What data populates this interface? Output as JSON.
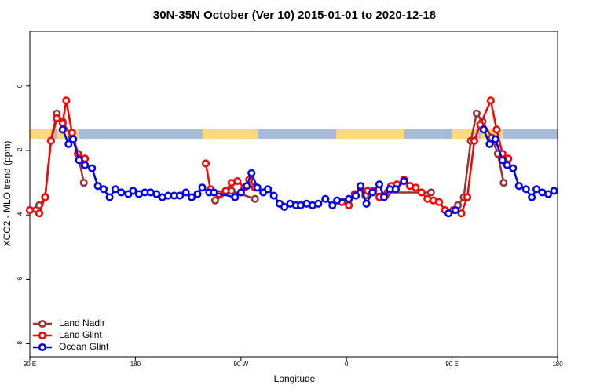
{
  "chart_data": {
    "type": "line",
    "title": "30N-35N October (Ver 10)   2015-01-01 to 2020-12-18",
    "x_label": "Longitude",
    "y_label": "XCO2 - MLO trend (ppm)",
    "xlim": [
      90,
      540
    ],
    "ylim": [
      -8.4,
      1.7
    ],
    "xticks": [
      {
        "value": 90,
        "label": "90 E"
      },
      180,
      {
        "value": 270,
        "label": "90 W"
      },
      {
        "value": 360,
        "label": "0"
      },
      {
        "value": 450,
        "label": "90 E"
      },
      {
        "value": 540,
        "label": "180"
      }
    ],
    "yticks": [
      0,
      -2,
      -4,
      -6,
      -8
    ],
    "legend": "bottom-left",
    "series": [
      {
        "name": "Land Nadir",
        "color": "#993333",
        "x": [
          90,
          98,
          103,
          108,
          113,
          118,
          126,
          131,
          136,
          null,
          248,
          262,
          282,
          null,
          376,
          395,
          432,
          null,
          455,
          460,
          466,
          471,
          476,
          484,
          489,
          494
        ],
        "values": [
          -3.85,
          -3.7,
          -3.45,
          -1.7,
          -0.85,
          -1.1,
          -1.6,
          -2.1,
          -3.0,
          null,
          -3.55,
          -3.25,
          -3.5,
          null,
          -3.4,
          -3.3,
          -3.3,
          null,
          -3.7,
          -3.45,
          -1.7,
          -0.85,
          -1.1,
          -1.6,
          -2.1,
          -3.0
        ]
      },
      {
        "name": "Land Glint",
        "color": "#ff0000",
        "x": [
          90,
          98,
          103,
          108,
          113,
          118,
          121,
          126,
          131,
          137,
          null,
          240,
          244,
          251,
          257,
          262,
          267,
          273,
          277,
          282,
          null,
          356,
          362,
          367,
          372,
          378,
          383,
          388,
          393,
          398,
          403,
          409,
          414,
          419,
          424,
          429,
          434,
          439,
          444,
          451,
          458,
          463,
          469,
          474,
          483,
          488,
          493,
          498
        ],
        "values": [
          -3.85,
          -3.95,
          -3.45,
          -1.7,
          -1.0,
          -1.15,
          -0.45,
          -1.45,
          -2.1,
          -2.25,
          null,
          -2.4,
          -3.2,
          -3.35,
          -3.25,
          -3.0,
          -2.95,
          -3.15,
          -2.9,
          -3.15,
          null,
          -3.6,
          -3.7,
          -3.35,
          -3.15,
          -3.25,
          -3.25,
          -3.45,
          -3.4,
          -3.1,
          -3.05,
          -2.9,
          -3.1,
          -3.15,
          -3.3,
          -3.5,
          -3.55,
          -3.6,
          -3.85,
          -3.85,
          -3.95,
          -3.45,
          -1.7,
          -1.2,
          -0.45,
          -1.35,
          -2.1,
          -2.25
        ]
      },
      {
        "name": "Ocean Glint",
        "color": "#0000ee",
        "x": [
          118,
          123,
          127,
          132,
          137,
          143,
          148,
          153,
          158,
          163,
          168,
          174,
          178,
          183,
          188,
          193,
          198,
          203,
          208,
          213,
          218,
          223,
          228,
          233,
          237,
          243,
          247,
          265,
          270,
          275,
          279,
          284,
          289,
          293,
          298,
          303,
          307,
          312,
          317,
          321,
          326,
          331,
          336,
          342,
          348,
          352,
          362,
          368,
          372,
          377,
          382,
          388,
          392,
          397,
          402,
          409,
          null,
          447,
          453,
          null,
          477,
          482,
          487,
          493,
          497,
          502,
          507,
          513,
          518,
          522,
          527,
          532,
          537
        ],
        "values": [
          -1.35,
          -1.8,
          -1.65,
          -2.3,
          -2.45,
          -2.55,
          -3.1,
          -3.2,
          -3.45,
          -3.2,
          -3.3,
          -3.35,
          -3.25,
          -3.35,
          -3.3,
          -3.3,
          -3.35,
          -3.45,
          -3.4,
          -3.4,
          -3.4,
          -3.3,
          -3.45,
          -3.35,
          -3.15,
          -3.3,
          -3.3,
          -3.45,
          -3.3,
          -3.1,
          -2.7,
          -3.15,
          -3.3,
          -3.2,
          -3.4,
          -3.65,
          -3.75,
          -3.65,
          -3.7,
          -3.7,
          -3.65,
          -3.7,
          -3.65,
          -3.5,
          -3.7,
          -3.55,
          -3.5,
          -3.4,
          -3.1,
          -3.65,
          -3.3,
          -3.05,
          -3.45,
          -3.2,
          -3.2,
          -2.95,
          null,
          -3.95,
          -3.85,
          null,
          -1.35,
          -1.8,
          -1.65,
          -2.3,
          -2.45,
          -2.55,
          -3.1,
          -3.2,
          -3.45,
          -3.2,
          -3.3,
          -3.35,
          -3.25
        ]
      }
    ]
  }
}
